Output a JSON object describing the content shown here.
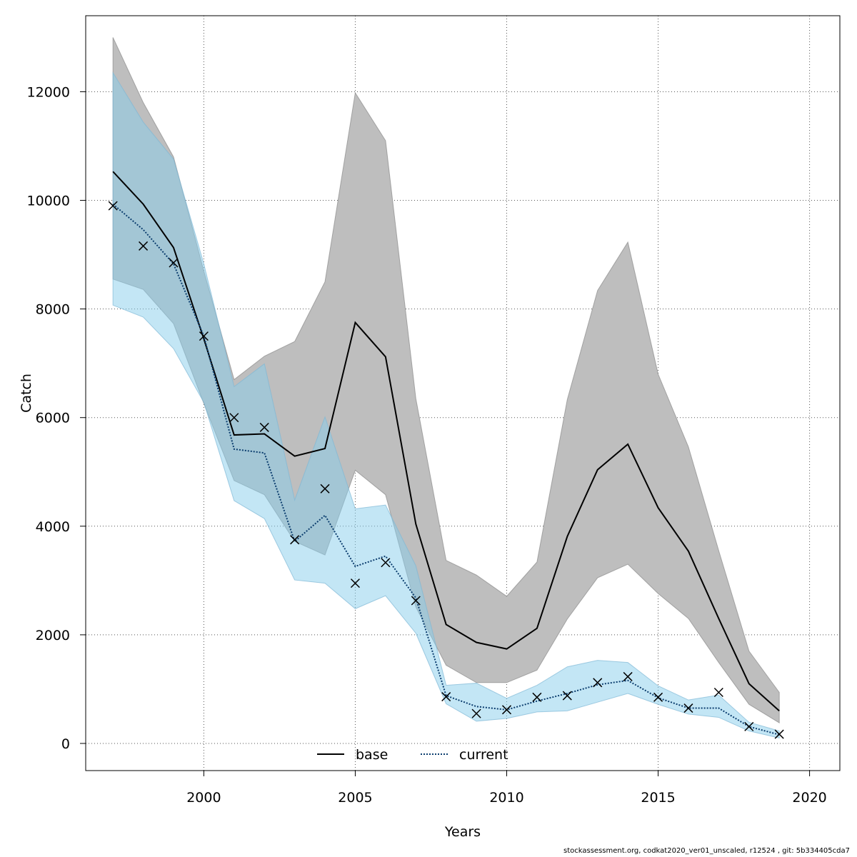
{
  "chart_data": {
    "type": "line",
    "title": "",
    "xlabel": "Years",
    "ylabel": "Catch",
    "xlim": [
      1996.1,
      2021.0
    ],
    "ylim": [
      -500,
      13400
    ],
    "x_ticks": [
      2000,
      2005,
      2010,
      2015,
      2020
    ],
    "y_ticks": [
      0,
      2000,
      4000,
      6000,
      8000,
      10000,
      12000
    ],
    "grid": true,
    "legend_position": "bottom-center",
    "x": [
      1997,
      1998,
      1999,
      2000,
      2001,
      2002,
      2003,
      2004,
      2005,
      2006,
      2007,
      2008,
      2009,
      2010,
      2011,
      2012,
      2013,
      2014,
      2015,
      2016,
      2017,
      2018,
      2019
    ],
    "series": [
      {
        "name": "base",
        "color": "#000000",
        "band_color": "#bebebe",
        "line_style": "solid",
        "values": [
          10530,
          9930,
          9130,
          7450,
          5680,
          5700,
          5290,
          5430,
          7750,
          7120,
          4040,
          2190,
          1860,
          1740,
          2120,
          3810,
          5040,
          5510,
          4340,
          3540,
          2300,
          1100,
          600
        ],
        "upper": [
          13000,
          11800,
          10800,
          8700,
          6700,
          7130,
          7400,
          8500,
          11980,
          11100,
          6350,
          3370,
          3100,
          2710,
          3340,
          6330,
          8340,
          9230,
          6800,
          5460,
          3550,
          1700,
          940
        ],
        "lower": [
          8550,
          8360,
          7730,
          6260,
          4840,
          4580,
          3720,
          3470,
          5030,
          4580,
          2510,
          1440,
          1120,
          1120,
          1350,
          2290,
          3050,
          3300,
          2760,
          2300,
          1490,
          720,
          380
        ]
      },
      {
        "name": "current",
        "color": "#0b3d6e",
        "band_color": "#87ceeb",
        "line_style": "dotted",
        "values": [
          9930,
          9460,
          8830,
          7500,
          5420,
          5350,
          3720,
          4200,
          3260,
          3450,
          2680,
          880,
          680,
          620,
          780,
          920,
          1080,
          1160,
          840,
          650,
          650,
          310,
          160
        ],
        "upper": [
          12350,
          11440,
          10760,
          8830,
          6570,
          6990,
          4480,
          6010,
          4320,
          4390,
          3270,
          1070,
          1110,
          830,
          1070,
          1410,
          1530,
          1490,
          1060,
          800,
          890,
          390,
          230
        ],
        "lower": [
          8070,
          7850,
          7270,
          6280,
          4470,
          4140,
          3010,
          2950,
          2480,
          2720,
          2030,
          730,
          410,
          460,
          580,
          600,
          760,
          920,
          720,
          540,
          480,
          230,
          100
        ]
      },
      {
        "name": "",
        "marker": "x",
        "color": "#000000",
        "values": [
          9900,
          9160,
          8850,
          7500,
          6000,
          5820,
          3750,
          4690,
          2950,
          3330,
          2630,
          860,
          550,
          620,
          850,
          880,
          1120,
          1230,
          850,
          650,
          940,
          310,
          170
        ]
      }
    ]
  },
  "footer_text": "stockassessment.org, codkat2020_ver01_unscaled, r12524 , git: 5b334405cda7"
}
